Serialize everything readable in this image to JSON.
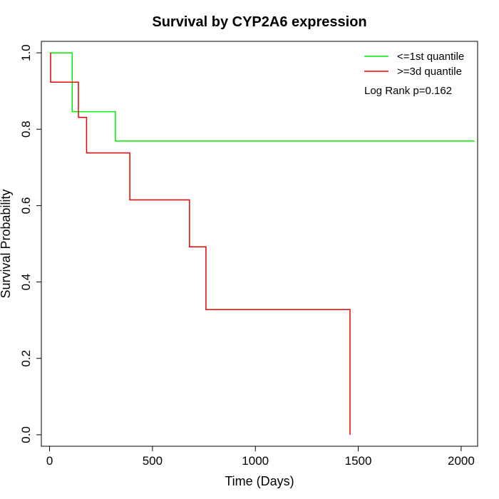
{
  "chart_data": {
    "type": "line",
    "title": "Survival by CYP2A6 expression",
    "xlabel": "Time (Days)",
    "ylabel": "Survival Probability",
    "xlim": [
      -40,
      2080
    ],
    "ylim": [
      -0.03,
      1.03
    ],
    "xticks": [
      0,
      500,
      1000,
      1500,
      2000
    ],
    "xtick_labels": [
      "0",
      "500",
      "1000",
      "1500",
      "2000"
    ],
    "yticks": [
      0.0,
      0.2,
      0.4,
      0.6,
      0.8,
      1.0
    ],
    "ytick_labels": [
      "0.0",
      "0.2",
      "0.4",
      "0.6",
      "0.8",
      "1.0"
    ],
    "grid": false,
    "legend_position": "top-right",
    "annotation": "Log Rank p=0.162",
    "series": [
      {
        "name": "<=1st quantile",
        "color": "#00ee00",
        "step": true,
        "points": [
          [
            0,
            1.0
          ],
          [
            110,
            1.0
          ],
          [
            110,
            0.846
          ],
          [
            320,
            0.846
          ],
          [
            320,
            0.769
          ],
          [
            2065,
            0.769
          ]
        ]
      },
      {
        "name": ">=3d quantile",
        "color": "#ee0000",
        "step": true,
        "points": [
          [
            5,
            1.0
          ],
          [
            5,
            0.923
          ],
          [
            140,
            0.923
          ],
          [
            140,
            0.831
          ],
          [
            180,
            0.831
          ],
          [
            180,
            0.738
          ],
          [
            390,
            0.738
          ],
          [
            390,
            0.615
          ],
          [
            680,
            0.615
          ],
          [
            680,
            0.492
          ],
          [
            760,
            0.492
          ],
          [
            760,
            0.328
          ],
          [
            1460,
            0.328
          ],
          [
            1460,
            0.0
          ]
        ]
      }
    ]
  }
}
